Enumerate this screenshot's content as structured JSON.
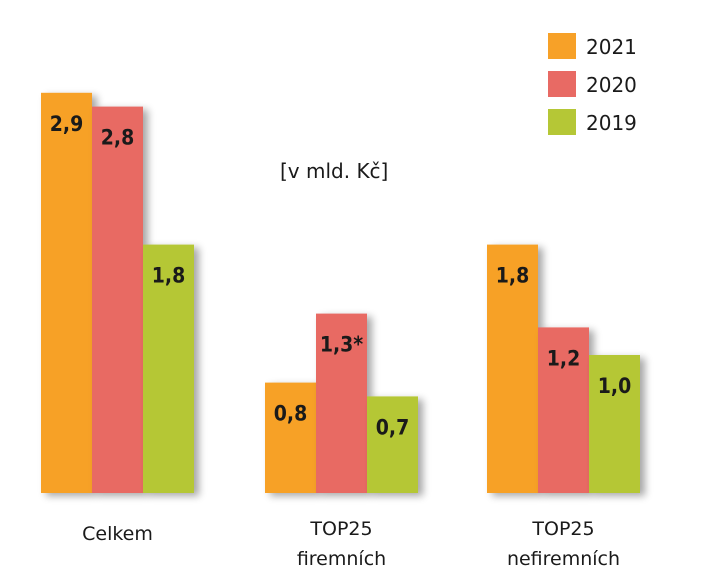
{
  "chart_data": {
    "type": "bar",
    "title": "",
    "unit_note": "[v mld. Kč]",
    "categories": [
      [
        "Celkem"
      ],
      [
        "TOP25",
        "firemních"
      ],
      [
        "TOP25",
        "nefiremních"
      ]
    ],
    "series": [
      {
        "name": "2021",
        "color": "#F7A128",
        "values": [
          2.9,
          0.8,
          1.8
        ],
        "labels": [
          "2,9",
          "0,8",
          "1,8"
        ]
      },
      {
        "name": "2020",
        "color": "#E86A64",
        "values": [
          2.8,
          1.3,
          1.2
        ],
        "labels": [
          "2,8",
          "1,3*",
          "1,2"
        ]
      },
      {
        "name": "2019",
        "color": "#B5C736",
        "values": [
          1.8,
          0.7,
          1.0
        ],
        "labels": [
          "1,8",
          "0,7",
          "1,0"
        ]
      }
    ],
    "legend_position": "top-right",
    "ylim": [
      0,
      3.0
    ],
    "grid": false
  }
}
